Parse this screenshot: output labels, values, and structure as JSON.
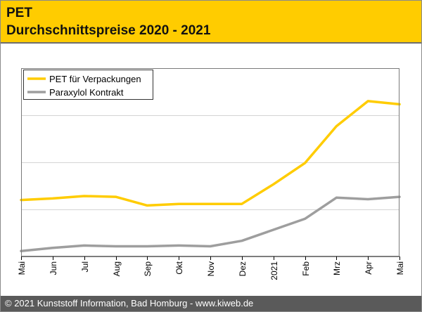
{
  "header": {
    "title": "PET",
    "subtitle": "Durchschnittspreise 2020 - 2021"
  },
  "footer": {
    "text": "© 2021 Kunststoff Information, Bad Homburg - www.kiweb.de"
  },
  "colors": {
    "header_bg": "#ffcc00",
    "footer_bg": "#5a5a5a",
    "pet": "#ffcc00",
    "paraxylol": "#9e9e9e"
  },
  "chart_data": {
    "type": "line",
    "categories": [
      "Mai",
      "Jun",
      "Jul",
      "Aug",
      "Sep",
      "Okt",
      "Nov",
      "Dez",
      "2021",
      "Feb",
      "Mrz",
      "Apr",
      "Mai"
    ],
    "series": [
      {
        "name": "PET für Verpackungen",
        "color": "#ffcc00",
        "values": [
          3.6,
          3.7,
          3.85,
          3.8,
          3.25,
          3.35,
          3.35,
          3.35,
          4.6,
          5.95,
          8.3,
          9.9,
          9.7
        ]
      },
      {
        "name": "Paraxylol Kontrakt",
        "color": "#9e9e9e",
        "values": [
          0.35,
          0.55,
          0.7,
          0.65,
          0.65,
          0.7,
          0.65,
          1.0,
          1.7,
          2.4,
          3.75,
          3.65,
          3.8
        ]
      }
    ],
    "ylim": [
      0,
      12
    ],
    "yticks": [
      0,
      3,
      6,
      9,
      12
    ],
    "grid": true,
    "legend_position": "top-left",
    "xlabel": "",
    "ylabel": ""
  }
}
